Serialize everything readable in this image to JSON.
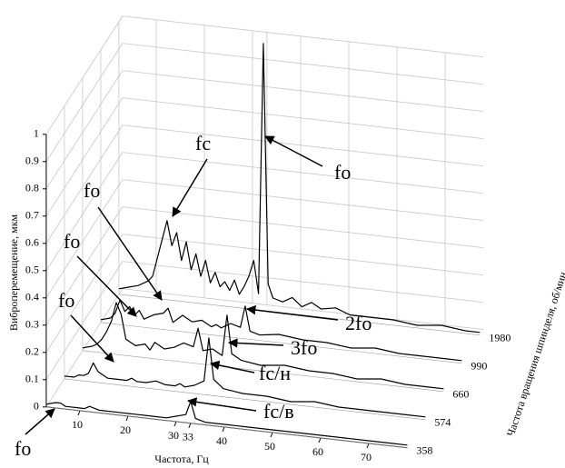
{
  "chart_data": {
    "type": "waterfall",
    "xlabel": "Частота, Гц",
    "zlabel": "Виброперемещение, мкм",
    "depth_label": "Частота вращения шпинделя, об/мин",
    "depth_categories": [
      358,
      574,
      660,
      990,
      1980
    ],
    "xlim": [
      3,
      78
    ],
    "xticks": [
      10,
      20,
      30,
      33,
      40,
      50,
      60,
      70
    ],
    "zlim": [
      0,
      1
    ],
    "zticks": [
      0,
      0.1,
      0.2,
      0.3,
      0.4,
      0.5,
      0.6,
      0.7,
      0.8,
      0.9,
      1
    ],
    "grid": true,
    "series": [
      {
        "color": "#000000",
        "x": [
          3,
          5,
          6,
          7,
          8,
          9,
          10,
          11,
          12,
          14,
          16,
          17,
          18,
          20,
          22,
          24,
          26,
          27,
          28,
          30,
          32,
          33,
          34,
          36,
          40,
          45,
          50,
          55,
          60,
          65,
          70,
          75,
          78
        ],
        "values": [
          0.01,
          0.02,
          0.02,
          0.01,
          0.01,
          0.01,
          0.01,
          0.01,
          0.02,
          0.01,
          0.01,
          0.01,
          0.01,
          0.01,
          0.01,
          0.01,
          0.01,
          0.01,
          0.01,
          0.02,
          0.03,
          0.08,
          0.02,
          0.01,
          0.01,
          0.01,
          0.01,
          0.01,
          0.01,
          0.01,
          0.01,
          0.01,
          0.01
        ]
      },
      {
        "color": "#000000",
        "x": [
          3,
          5,
          6,
          7,
          8,
          9,
          10,
          11,
          12,
          14,
          16,
          17,
          18,
          20,
          22,
          24,
          26,
          27,
          28,
          30,
          32,
          33,
          34,
          36,
          40,
          45,
          50,
          55,
          60,
          65,
          70,
          75,
          78
        ],
        "values": [
          0.01,
          0.01,
          0.02,
          0.02,
          0.03,
          0.07,
          0.04,
          0.03,
          0.02,
          0.02,
          0.02,
          0.03,
          0.02,
          0.02,
          0.03,
          0.02,
          0.02,
          0.03,
          0.02,
          0.03,
          0.05,
          0.21,
          0.06,
          0.03,
          0.02,
          0.02,
          0.01,
          0.02,
          0.01,
          0.01,
          0.01,
          0.01,
          0.01
        ]
      },
      {
        "color": "#000000",
        "x": [
          3,
          5,
          6,
          7,
          8,
          9,
          10,
          11,
          12,
          14,
          16,
          17,
          18,
          20,
          22,
          24,
          26,
          27,
          28,
          30,
          32,
          33,
          34,
          36,
          40,
          45,
          50,
          55,
          60,
          65,
          70,
          75,
          78
        ],
        "values": [
          0.01,
          0.02,
          0.03,
          0.05,
          0.08,
          0.12,
          0.19,
          0.15,
          0.06,
          0.04,
          0.05,
          0.03,
          0.06,
          0.04,
          0.05,
          0.07,
          0.06,
          0.13,
          0.05,
          0.06,
          0.04,
          0.19,
          0.05,
          0.03,
          0.02,
          0.03,
          0.02,
          0.02,
          0.01,
          0.02,
          0.01,
          0.01,
          0.01
        ]
      },
      {
        "color": "#000000",
        "x": [
          3,
          5,
          6,
          7,
          8,
          9,
          10,
          11,
          12,
          14,
          16,
          17,
          18,
          20,
          22,
          24,
          26,
          27,
          28,
          30,
          32,
          33,
          34,
          36,
          40,
          45,
          50,
          55,
          60,
          65,
          70,
          75,
          78
        ],
        "values": [
          0.01,
          0.02,
          0.04,
          0.09,
          0.05,
          0.07,
          0.04,
          0.06,
          0.03,
          0.05,
          0.06,
          0.08,
          0.03,
          0.06,
          0.04,
          0.05,
          0.03,
          0.04,
          0.03,
          0.05,
          0.04,
          0.12,
          0.03,
          0.02,
          0.03,
          0.02,
          0.02,
          0.01,
          0.02,
          0.01,
          0.01,
          0.01,
          0.01
        ]
      },
      {
        "color": "#000000",
        "x": [
          3,
          5,
          7,
          9,
          10,
          11,
          12,
          13,
          14,
          15,
          16,
          17,
          18,
          19,
          20,
          21,
          22,
          23,
          24,
          25,
          26,
          27,
          28,
          29,
          30,
          31,
          32,
          33,
          34,
          35,
          37,
          39,
          41,
          43,
          45,
          48,
          51,
          55,
          60,
          65,
          70,
          75,
          78
        ],
        "values": [
          0.02,
          0.03,
          0.04,
          0.06,
          0.08,
          0.15,
          0.22,
          0.29,
          0.2,
          0.25,
          0.15,
          0.22,
          0.12,
          0.18,
          0.1,
          0.16,
          0.08,
          0.12,
          0.07,
          0.09,
          0.06,
          0.1,
          0.05,
          0.08,
          0.12,
          0.18,
          0.06,
          0.98,
          0.1,
          0.05,
          0.04,
          0.06,
          0.03,
          0.05,
          0.03,
          0.04,
          0.02,
          0.02,
          0.02,
          0.01,
          0.02,
          0.01,
          0.01
        ]
      }
    ],
    "annotations": [
      "fс",
      "fо",
      "fо",
      "fо",
      "fо",
      "2fо",
      "3fо",
      "fс/н",
      "fс/в",
      "fо"
    ]
  }
}
